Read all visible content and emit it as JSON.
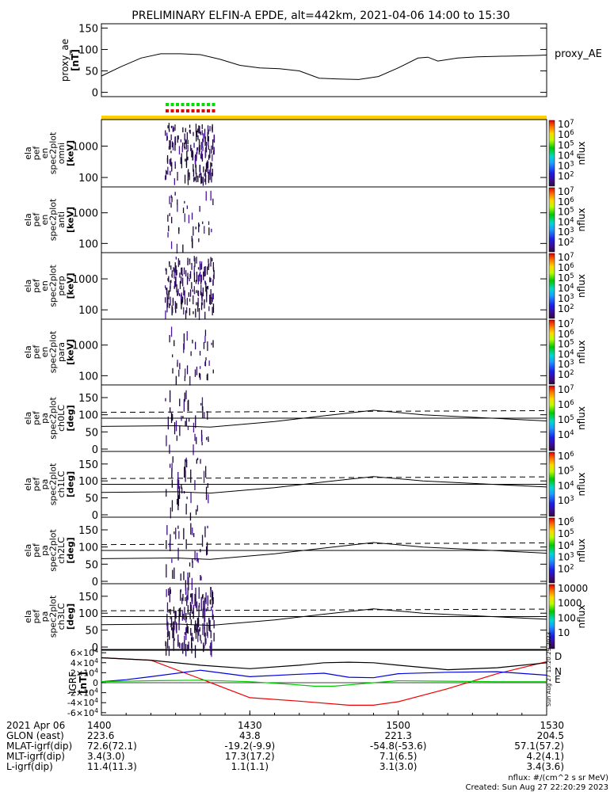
{
  "title": "PRELIMINARY ELFIN-A EPDE, alt=442km, 2021-04-06 14:00 to 15:30",
  "chart_data": [
    {
      "type": "line",
      "id": "proxy_ae",
      "ylabel": [
        "proxy_ae",
        "[nT]"
      ],
      "yticks": [
        "150",
        "100",
        "50",
        "0"
      ],
      "ylim": [
        -10,
        160
      ],
      "legend": "proxy_AE",
      "x_minutes": [
        0,
        4,
        8,
        12,
        16,
        20,
        24,
        28,
        32,
        36,
        40,
        44,
        48,
        52,
        56,
        60,
        64,
        66,
        68,
        72,
        76,
        80,
        84,
        88,
        90
      ],
      "values": [
        38,
        60,
        80,
        90,
        90,
        88,
        77,
        63,
        57,
        55,
        50,
        33,
        31,
        30,
        37,
        57,
        80,
        82,
        73,
        80,
        83,
        84,
        85,
        86,
        87
      ]
    },
    {
      "type": "heatmap",
      "id": "spec_omni",
      "ylabel": [
        "ela",
        "pef",
        "en",
        "spec2plot",
        "omni",
        "[keV]"
      ],
      "yticks": [
        "1000",
        "100"
      ],
      "colorbar_ticks": [
        "10<sup>7</sup>",
        "10<sup>6</sup>",
        "10<sup>5</sup>",
        "10<sup>4</sup>",
        "10<sup>3</sup>",
        "10<sup>2</sup>"
      ],
      "colorbar_label": "nflux"
    },
    {
      "type": "heatmap",
      "id": "spec_anti",
      "ylabel": [
        "ela",
        "pef",
        "en",
        "spec2plot",
        "anti",
        "[keV]"
      ],
      "yticks": [
        "1000",
        "100"
      ],
      "colorbar_ticks": [
        "10<sup>7</sup>",
        "10<sup>6</sup>",
        "10<sup>5</sup>",
        "10<sup>4</sup>",
        "10<sup>3</sup>",
        "10<sup>2</sup>"
      ],
      "colorbar_label": "nflux"
    },
    {
      "type": "heatmap",
      "id": "spec_perp",
      "ylabel": [
        "ela",
        "pef",
        "en",
        "spec2plot",
        "perp",
        "[keV]"
      ],
      "yticks": [
        "1000",
        "100"
      ],
      "colorbar_ticks": [
        "10<sup>7</sup>",
        "10<sup>6</sup>",
        "10<sup>5</sup>",
        "10<sup>4</sup>",
        "10<sup>3</sup>",
        "10<sup>2</sup>"
      ],
      "colorbar_label": "nflux"
    },
    {
      "type": "heatmap",
      "id": "spec_para",
      "ylabel": [
        "ela",
        "pef",
        "en",
        "spec2plot",
        "para",
        "[keV]"
      ],
      "yticks": [
        "1000",
        "100"
      ],
      "colorbar_ticks": [
        "10<sup>7</sup>",
        "10<sup>6</sup>",
        "10<sup>5</sup>",
        "10<sup>4</sup>",
        "10<sup>3</sup>",
        "10<sup>2</sup>"
      ],
      "colorbar_label": "nflux"
    },
    {
      "type": "heatmap",
      "id": "pa_ch0",
      "ylabel": [
        "ela",
        "pef",
        "pa",
        "spec2plot",
        "ch0LC",
        "[deg]"
      ],
      "yticks": [
        "150",
        "100",
        "50",
        "0"
      ],
      "colorbar_ticks": [
        "10<sup>7</sup>",
        "10<sup>6</sup>",
        "10<sup>5</sup>",
        "10<sup>4</sup>"
      ],
      "colorbar_label": "nflux"
    },
    {
      "type": "heatmap",
      "id": "pa_ch1",
      "ylabel": [
        "ela",
        "pef",
        "pa",
        "spec2plot",
        "ch1LC",
        "[deg]"
      ],
      "yticks": [
        "150",
        "100",
        "50",
        "0"
      ],
      "colorbar_ticks": [
        "10<sup>6</sup>",
        "10<sup>5</sup>",
        "10<sup>4</sup>",
        "10<sup>3</sup>"
      ],
      "colorbar_label": "nflux"
    },
    {
      "type": "heatmap",
      "id": "pa_ch2",
      "ylabel": [
        "ela",
        "pef",
        "pa",
        "spec2plot",
        "ch2LC",
        "[deg]"
      ],
      "yticks": [
        "150",
        "100",
        "50",
        "0"
      ],
      "colorbar_ticks": [
        "10<sup>6</sup>",
        "10<sup>5</sup>",
        "10<sup>4</sup>",
        "10<sup>3</sup>",
        "10<sup>2</sup>"
      ],
      "colorbar_label": "nflux"
    },
    {
      "type": "heatmap",
      "id": "pa_ch3",
      "ylabel": [
        "ela",
        "pef",
        "pa",
        "spec2plot",
        "ch3LC",
        "[deg]"
      ],
      "yticks": [
        "150",
        "100",
        "50",
        "0"
      ],
      "colorbar_ticks": [
        "10000",
        "1000",
        "100",
        "10"
      ],
      "colorbar_label": "nflux"
    },
    {
      "type": "line",
      "id": "igrf",
      "ylabel": [
        "IGRF",
        "[nT]"
      ],
      "yticks": [
        "6×10<sup>4</sup>",
        "4×10<sup>4</sup>",
        "2×10<sup>4</sup>",
        "0",
        "-2×10<sup>4</sup>",
        "-4×10<sup>4</sup>",
        "-6×10<sup>4</sup>"
      ],
      "ylim": [
        -65000,
        65000
      ],
      "series": [
        {
          "name": "D",
          "color": "#ee0000",
          "x_minutes": [
            0,
            10,
            20,
            30,
            40,
            50,
            55,
            60,
            70,
            80,
            90
          ],
          "values": [
            50000,
            45000,
            8000,
            -30000,
            -37000,
            -45000,
            -45000,
            -38000,
            -12000,
            18000,
            42000
          ]
        },
        {
          "name": "N",
          "color": "#0000dd",
          "x_minutes": [
            0,
            5,
            10,
            20,
            30,
            40,
            45,
            50,
            55,
            60,
            70,
            80,
            90
          ],
          "values": [
            2000,
            6000,
            12000,
            25000,
            12000,
            17000,
            19000,
            11000,
            10000,
            18000,
            21000,
            22000,
            15000
          ]
        },
        {
          "name": "E",
          "color": "#00cc00",
          "x_minutes": [
            0,
            10,
            20,
            30,
            38,
            43,
            47,
            55,
            60,
            70,
            80,
            90
          ],
          "values": [
            2000,
            4000,
            5000,
            2000,
            -3000,
            -7000,
            -7000,
            0,
            4000,
            3000,
            2000,
            2000
          ]
        },
        {
          "name": "",
          "color": "#000000",
          "x_minutes": [
            0,
            10,
            20,
            30,
            40,
            45,
            50,
            55,
            60,
            70,
            80,
            90
          ],
          "values": [
            50000,
            45000,
            35000,
            28000,
            35000,
            40000,
            41000,
            40000,
            35000,
            26000,
            30000,
            40000
          ]
        }
      ],
      "side_text": "Sun Aug 27 15:20:29 2023"
    }
  ],
  "xaxis": {
    "rows": [
      {
        "label": "2021 Apr 06",
        "cols": [
          "1400",
          "1430",
          "1500",
          "1530"
        ]
      },
      {
        "label": "GLON (east)",
        "cols": [
          "223.6",
          "43.8",
          "221.3",
          "204.5"
        ]
      },
      {
        "label": "MLAT-igrf(dip)",
        "cols": [
          "72.6(72.1)",
          "-19.2(-9.9)",
          "-54.8(-53.6)",
          "57.1(57.2)"
        ]
      },
      {
        "label": "MLT-igrf(dip)",
        "cols": [
          "3.4(3.0)",
          "17.3(17.2)",
          "7.1(6.5)",
          "4.2(4.1)"
        ]
      },
      {
        "label": "L-igrf(dip)",
        "cols": [
          "11.4(11.3)",
          "1.1(1.1)",
          "3.1(3.0)",
          "3.4(3.6)"
        ]
      }
    ]
  },
  "footer": {
    "units": "nflux: #/(cm^2 s sr MeV)",
    "created": "Created: Sun Aug 27 22:20:29 2023"
  }
}
